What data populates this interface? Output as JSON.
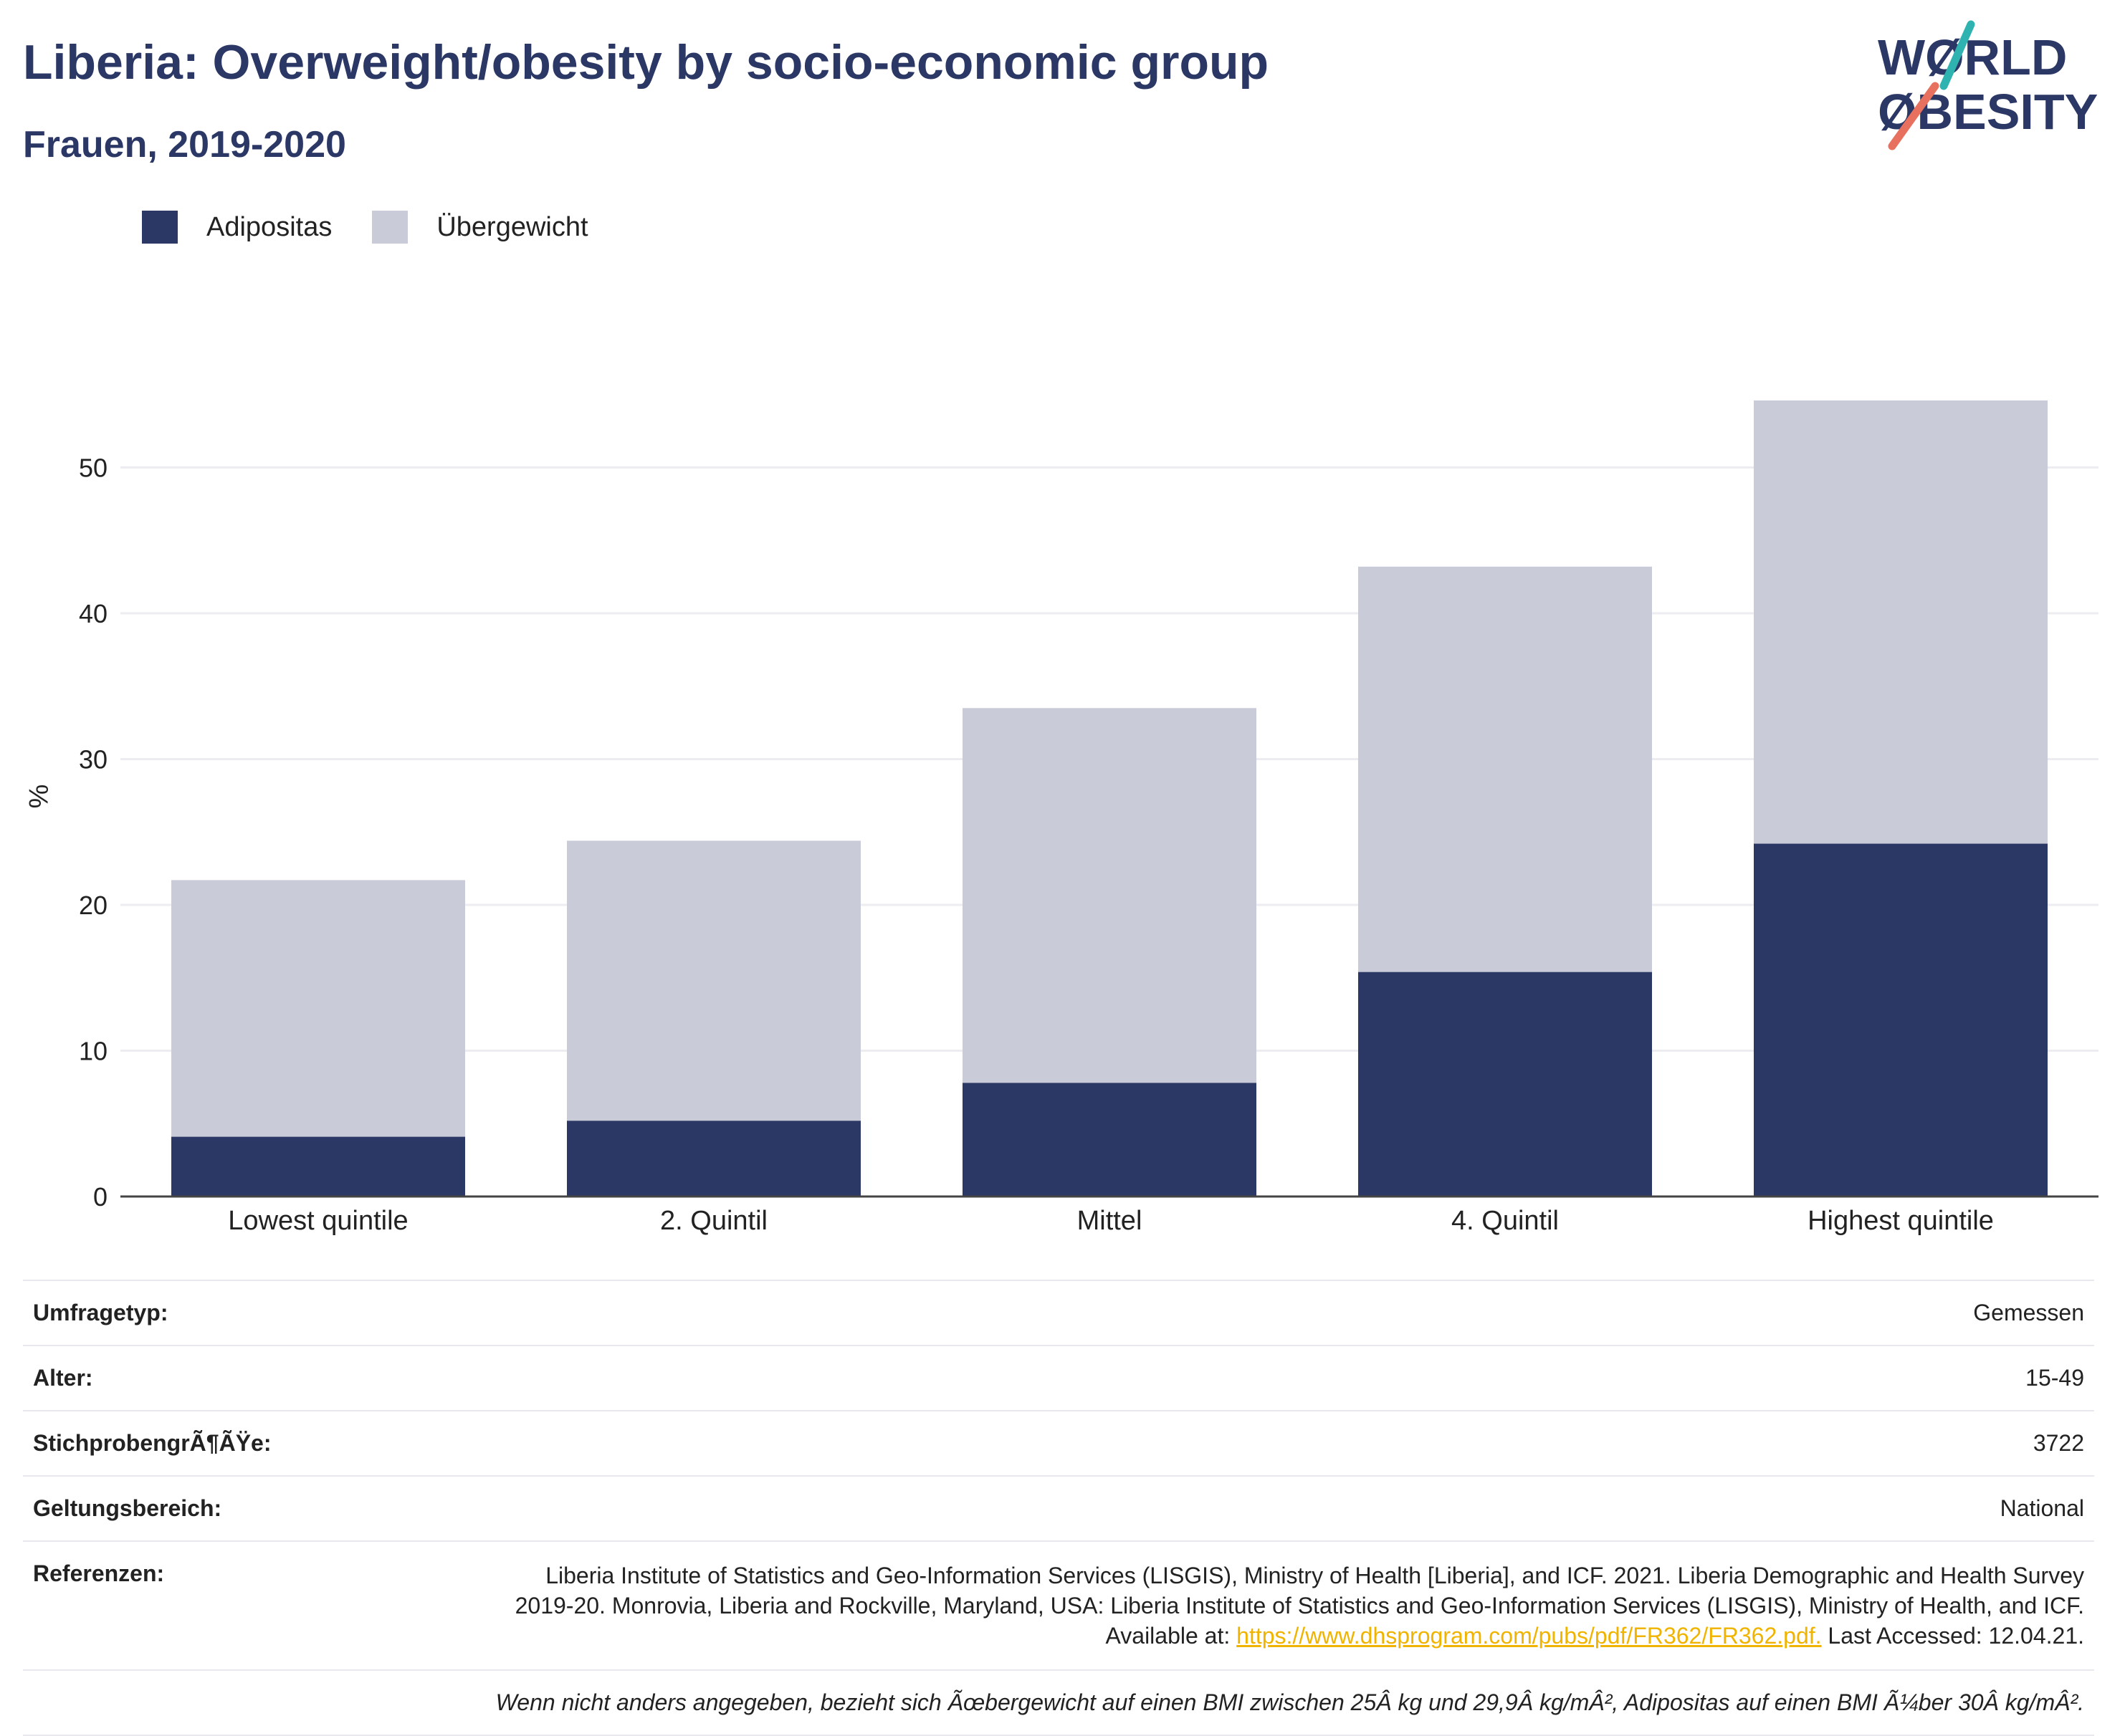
{
  "header": {
    "title": "Liberia: Overweight/obesity by socio-economic group",
    "subtitle": "Frauen, 2019-2020"
  },
  "logo": {
    "line1": "WØRLD",
    "line2": "ØBESITY",
    "accent_teal": "#2fb3b0",
    "accent_coral": "#e8705f"
  },
  "chart_data": {
    "type": "bar",
    "stacked": true,
    "categories": [
      "Lowest quintile",
      "2. Quintil",
      "Mittel",
      "4. Quintil",
      "Highest quintile"
    ],
    "series": [
      {
        "name": "Adipositas",
        "color": "#2b3764",
        "values": [
          4.1,
          5.2,
          7.8,
          15.4,
          24.2
        ]
      },
      {
        "name": "Übergewicht",
        "color": "#c9cbd8",
        "values": [
          17.6,
          19.2,
          25.7,
          27.8,
          30.4
        ]
      }
    ],
    "ylabel": "%",
    "ylim": [
      0,
      55
    ],
    "yticks": [
      0,
      10,
      20,
      30,
      40,
      50
    ],
    "grid": true,
    "legend": "top-left"
  },
  "meta": {
    "survey_type": {
      "label": "Umfragetyp:",
      "value": "Gemessen"
    },
    "age": {
      "label": "Alter:",
      "value": "15-49"
    },
    "sample_size": {
      "label": "StichprobengrÃ¶ÃŸe:",
      "value": "3722"
    },
    "coverage": {
      "label": "Geltungsbereich:",
      "value": "National"
    },
    "references": {
      "label": "Referenzen:",
      "text": "Liberia Institute of Statistics and Geo-Information Services (LISGIS), Ministry of Health [Liberia], and ICF. 2021. Liberia Demographic and Health Survey 2019-20. Monrovia, Liberia and Rockville, Maryland, USA: Liberia Institute of Statistics and Geo-Information Services (LISGIS), Ministry of Health, and ICF. Available at: ",
      "link": "https://www.dhsprogram.com/pubs/pdf/FR362/FR362.pdf.",
      "after": " Last Accessed: 12.04.21."
    },
    "note": "Wenn nicht anders angegeben, bezieht sich Ãœbergewicht auf einen BMI zwischen 25Â kg und 29,9Â kg/mÂ², Adipositas auf einen BMI Ã¼ber 30Â kg/mÂ²."
  }
}
